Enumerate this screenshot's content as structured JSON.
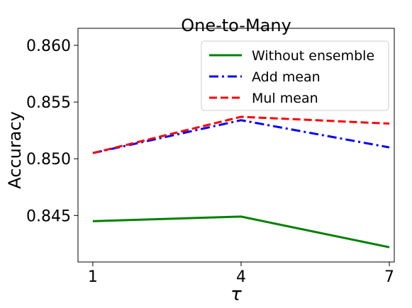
{
  "chart_data": {
    "type": "line",
    "title": "One-to-Many",
    "xlabel": "τ",
    "ylabel": "Accuracy",
    "x": [
      1,
      4,
      7
    ],
    "xticks": [
      1,
      4,
      7
    ],
    "xlim": [
      0.7,
      7.1
    ],
    "yticks": [
      "0.845",
      "0.850",
      "0.855",
      "0.860"
    ],
    "ylim": [
      0.8409,
      0.8615
    ],
    "grid": false,
    "legend_position": "top-right",
    "series": [
      {
        "name": "Without ensemble",
        "values": [
          0.8445,
          0.8449,
          0.8422
        ],
        "color": "#008000",
        "style": "solid"
      },
      {
        "name": "Add mean",
        "values": [
          0.8505,
          0.8534,
          0.851
        ],
        "color": "#0000ff",
        "style": "dashdot"
      },
      {
        "name": "Mul mean",
        "values": [
          0.8505,
          0.8537,
          0.8531
        ],
        "color": "#ff0000",
        "style": "dashed"
      }
    ]
  }
}
